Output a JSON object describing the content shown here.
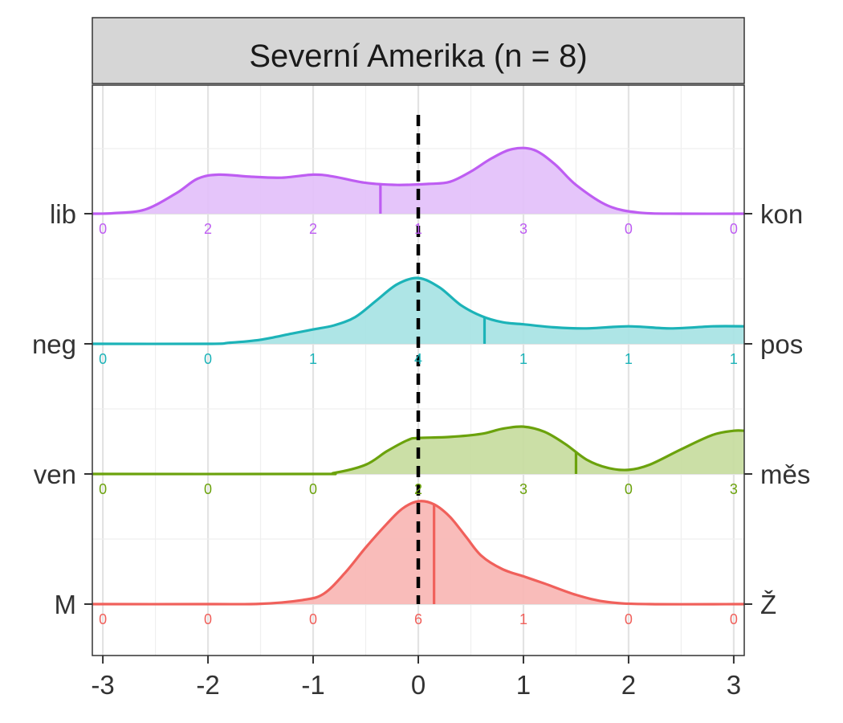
{
  "chart_data": {
    "type": "area",
    "facet_title": "Severní Amerika (n = 8)",
    "xlim": [
      -3.1,
      3.1
    ],
    "x_ticks": [
      -3,
      -2,
      -1,
      0,
      1,
      2,
      3
    ],
    "x_tick_labels": [
      "-3",
      "-2",
      "-1",
      "0",
      "1",
      "2",
      "3"
    ],
    "reference_line_x": 0,
    "count_positions": [
      -3,
      -2,
      -1,
      0,
      1,
      2,
      3
    ],
    "grid": true,
    "series": [
      {
        "left_label": "M",
        "right_label": "Ž",
        "color": "#F0605B",
        "fill": "#F8B5B2",
        "mean": 0.15,
        "counts": [
          "0",
          "0",
          "0",
          "6",
          "1",
          "0",
          "0"
        ],
        "density": [
          [
            -3.1,
            0
          ],
          [
            -2,
            0
          ],
          [
            -1.5,
            0.003
          ],
          [
            -1.1,
            0.04
          ],
          [
            -0.9,
            0.1
          ],
          [
            -0.7,
            0.3
          ],
          [
            -0.5,
            0.55
          ],
          [
            -0.3,
            0.78
          ],
          [
            -0.15,
            0.93
          ],
          [
            0,
            1
          ],
          [
            0.15,
            0.97
          ],
          [
            0.3,
            0.85
          ],
          [
            0.45,
            0.66
          ],
          [
            0.6,
            0.47
          ],
          [
            0.8,
            0.34
          ],
          [
            1,
            0.27
          ],
          [
            1.2,
            0.2
          ],
          [
            1.5,
            0.09
          ],
          [
            1.8,
            0.02
          ],
          [
            2.2,
            0
          ],
          [
            3.1,
            0
          ]
        ]
      },
      {
        "left_label": "ven",
        "right_label": "měs",
        "color": "#6BA20C",
        "fill": "#C5DB9C",
        "mean": 1.5,
        "counts": [
          "0",
          "0",
          "0",
          "2",
          "3",
          "0",
          "3"
        ],
        "density": [
          [
            -3.1,
            0
          ],
          [
            -1,
            0
          ],
          [
            -0.8,
            0.01
          ],
          [
            -0.5,
            0.09
          ],
          [
            -0.3,
            0.22
          ],
          [
            -0.1,
            0.33
          ],
          [
            0,
            0.35
          ],
          [
            0.3,
            0.36
          ],
          [
            0.6,
            0.39
          ],
          [
            0.8,
            0.44
          ],
          [
            1,
            0.46
          ],
          [
            1.2,
            0.41
          ],
          [
            1.4,
            0.29
          ],
          [
            1.6,
            0.14
          ],
          [
            1.8,
            0.06
          ],
          [
            2,
            0.04
          ],
          [
            2.2,
            0.09
          ],
          [
            2.5,
            0.24
          ],
          [
            2.8,
            0.38
          ],
          [
            3,
            0.42
          ],
          [
            3.1,
            0.42
          ]
        ]
      },
      {
        "left_label": "neg",
        "right_label": "pos",
        "color": "#1CB3B8",
        "fill": "#A5E2E3",
        "mean": 0.63,
        "counts": [
          "0",
          "0",
          "1",
          "4",
          "1",
          "1",
          "1"
        ],
        "density": [
          [
            -3.1,
            0
          ],
          [
            -2,
            0
          ],
          [
            -1.8,
            0.01
          ],
          [
            -1.5,
            0.04
          ],
          [
            -1.2,
            0.1
          ],
          [
            -1,
            0.14
          ],
          [
            -0.8,
            0.18
          ],
          [
            -0.6,
            0.26
          ],
          [
            -0.4,
            0.42
          ],
          [
            -0.2,
            0.58
          ],
          [
            0,
            0.64
          ],
          [
            0.2,
            0.55
          ],
          [
            0.4,
            0.38
          ],
          [
            0.6,
            0.27
          ],
          [
            0.8,
            0.21
          ],
          [
            1,
            0.19
          ],
          [
            1.3,
            0.16
          ],
          [
            1.6,
            0.15
          ],
          [
            2,
            0.17
          ],
          [
            2.4,
            0.15
          ],
          [
            2.8,
            0.17
          ],
          [
            3.1,
            0.17
          ]
        ]
      },
      {
        "left_label": "lib",
        "right_label": "kon",
        "color": "#BE5DF2",
        "fill": "#E2BFFA",
        "mean": -0.36,
        "counts": [
          "0",
          "2",
          "2",
          "1",
          "3",
          "0",
          "0"
        ],
        "density": [
          [
            -3.1,
            0
          ],
          [
            -2.9,
            0.005
          ],
          [
            -2.6,
            0.04
          ],
          [
            -2.3,
            0.2
          ],
          [
            -2.1,
            0.34
          ],
          [
            -1.9,
            0.38
          ],
          [
            -1.6,
            0.36
          ],
          [
            -1.3,
            0.35
          ],
          [
            -1,
            0.38
          ],
          [
            -0.8,
            0.36
          ],
          [
            -0.5,
            0.3
          ],
          [
            -0.2,
            0.28
          ],
          [
            0.1,
            0.29
          ],
          [
            0.3,
            0.31
          ],
          [
            0.5,
            0.41
          ],
          [
            0.7,
            0.54
          ],
          [
            0.9,
            0.63
          ],
          [
            1.1,
            0.62
          ],
          [
            1.3,
            0.48
          ],
          [
            1.5,
            0.28
          ],
          [
            1.8,
            0.08
          ],
          [
            2.1,
            0.01
          ],
          [
            2.5,
            0
          ],
          [
            3.1,
            0
          ]
        ]
      }
    ]
  }
}
